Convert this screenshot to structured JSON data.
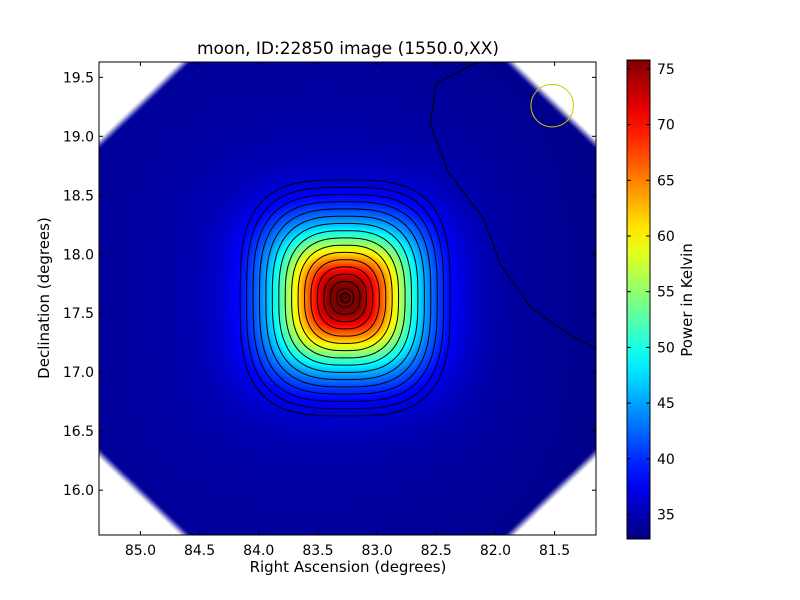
{
  "chart_data": {
    "type": "heatmap",
    "title": "moon, ID:22850 image (1550.0,XX)",
    "xlabel": "Right Ascension (degrees)",
    "ylabel": "Declination (degrees)",
    "xlim": [
      85.35,
      81.15
    ],
    "ylim": [
      15.62,
      19.63
    ],
    "x_inverted": true,
    "x_ticks": [
      85.0,
      84.5,
      84.0,
      83.5,
      83.0,
      82.5,
      82.0,
      81.5
    ],
    "x_tick_labels": [
      "85.0",
      "84.5",
      "84.0",
      "83.5",
      "83.0",
      "82.5",
      "82.0",
      "81.5"
    ],
    "y_ticks": [
      16.0,
      16.5,
      17.0,
      17.5,
      18.0,
      18.5,
      19.0,
      19.5
    ],
    "y_tick_labels": [
      "16.0",
      "16.5",
      "17.0",
      "17.5",
      "18.0",
      "18.5",
      "19.0",
      "19.5"
    ],
    "grid": false,
    "colormap": "jet",
    "colorbar": {
      "label": "Power in Kelvin",
      "vmin": 32.8,
      "vmax": 75.8,
      "ticks": [
        35,
        40,
        45,
        50,
        55,
        60,
        65,
        70,
        75
      ],
      "tick_labels": [
        "35",
        "40",
        "45",
        "50",
        "55",
        "60",
        "65",
        "70",
        "75"
      ]
    },
    "source_peak": {
      "ra": 83.27,
      "dec": 17.63,
      "value": 75.5
    },
    "background_level": 33.5,
    "contour_count": 16,
    "beam_circle": {
      "ra": 81.52,
      "dec": 19.26,
      "radius_deg": 0.3,
      "color": "#cccc00"
    },
    "blank_corners": true
  }
}
